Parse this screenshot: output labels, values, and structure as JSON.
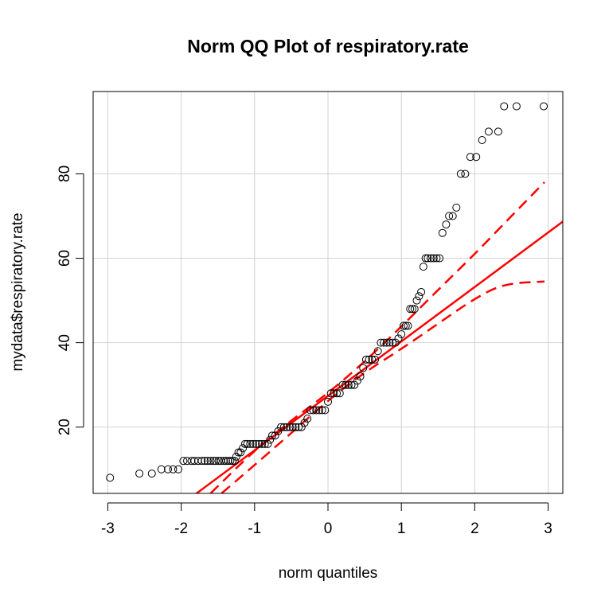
{
  "chart_data": {
    "type": "scatter",
    "title": "Norm QQ Plot of respiratory.rate",
    "xlabel": "norm quantiles",
    "ylabel": "mydata$respiratory.rate",
    "xlim": [
      -3.2,
      3.2
    ],
    "ylim": [
      4.3,
      99.5
    ],
    "xticks": [
      -3,
      -2,
      -1,
      0,
      1,
      2,
      3
    ],
    "yticks": [
      20,
      40,
      60,
      80
    ],
    "grid": true,
    "colors": {
      "points": "#000000",
      "fit_line": "#ff0000",
      "grid": "#d3d3d3",
      "box": "#000000"
    },
    "points": [
      [
        -2.97,
        8
      ],
      [
        -2.57,
        9
      ],
      [
        -2.4,
        9
      ],
      [
        -2.27,
        10
      ],
      [
        -2.18,
        10
      ],
      [
        -2.11,
        10
      ],
      [
        -2.04,
        10
      ],
      [
        -1.97,
        12
      ],
      [
        -1.92,
        12
      ],
      [
        -1.86,
        12
      ],
      [
        -1.82,
        12
      ],
      [
        -1.77,
        12
      ],
      [
        -1.72,
        12
      ],
      [
        -1.68,
        12
      ],
      [
        -1.64,
        12
      ],
      [
        -1.6,
        12
      ],
      [
        -1.56,
        12
      ],
      [
        -1.53,
        12
      ],
      [
        -1.49,
        12
      ],
      [
        -1.46,
        12
      ],
      [
        -1.42,
        12
      ],
      [
        -1.39,
        12
      ],
      [
        -1.36,
        12
      ],
      [
        -1.33,
        12
      ],
      [
        -1.3,
        12
      ],
      [
        -1.27,
        12
      ],
      [
        -1.25,
        13
      ],
      [
        -1.22,
        14
      ],
      [
        -1.19,
        14
      ],
      [
        -1.16,
        15
      ],
      [
        -1.13,
        16
      ],
      [
        -1.1,
        16
      ],
      [
        -1.06,
        16
      ],
      [
        -1.02,
        16
      ],
      [
        -0.98,
        16
      ],
      [
        -0.94,
        16
      ],
      [
        -0.9,
        16
      ],
      [
        -0.86,
        16
      ],
      [
        -0.82,
        16
      ],
      [
        -0.79,
        17
      ],
      [
        -0.76,
        18
      ],
      [
        -0.72,
        18
      ],
      [
        -0.68,
        19
      ],
      [
        -0.64,
        20
      ],
      [
        -0.6,
        20
      ],
      [
        -0.56,
        20
      ],
      [
        -0.52,
        20
      ],
      [
        -0.48,
        20
      ],
      [
        -0.44,
        20
      ],
      [
        -0.4,
        20
      ],
      [
        -0.36,
        20
      ],
      [
        -0.32,
        21
      ],
      [
        -0.28,
        22
      ],
      [
        -0.24,
        24
      ],
      [
        -0.2,
        24
      ],
      [
        -0.16,
        24
      ],
      [
        -0.12,
        24
      ],
      [
        -0.08,
        24
      ],
      [
        -0.04,
        24
      ],
      [
        0.0,
        26
      ],
      [
        0.04,
        28
      ],
      [
        0.08,
        28
      ],
      [
        0.12,
        28
      ],
      [
        0.16,
        28
      ],
      [
        0.2,
        30
      ],
      [
        0.24,
        30
      ],
      [
        0.28,
        30
      ],
      [
        0.32,
        30
      ],
      [
        0.36,
        30
      ],
      [
        0.4,
        31
      ],
      [
        0.44,
        32
      ],
      [
        0.48,
        34
      ],
      [
        0.52,
        36
      ],
      [
        0.56,
        36
      ],
      [
        0.6,
        36
      ],
      [
        0.64,
        36
      ],
      [
        0.68,
        38
      ],
      [
        0.72,
        40
      ],
      [
        0.76,
        40
      ],
      [
        0.8,
        40
      ],
      [
        0.84,
        40
      ],
      [
        0.88,
        40
      ],
      [
        0.92,
        40
      ],
      [
        0.96,
        41
      ],
      [
        1.0,
        42
      ],
      [
        1.03,
        44
      ],
      [
        1.06,
        44
      ],
      [
        1.09,
        44
      ],
      [
        1.12,
        48
      ],
      [
        1.15,
        48
      ],
      [
        1.18,
        48
      ],
      [
        1.21,
        50
      ],
      [
        1.24,
        51
      ],
      [
        1.27,
        52
      ],
      [
        1.3,
        58
      ],
      [
        1.33,
        60
      ],
      [
        1.36,
        60
      ],
      [
        1.4,
        60
      ],
      [
        1.44,
        60
      ],
      [
        1.48,
        60
      ],
      [
        1.52,
        60
      ],
      [
        1.56,
        66
      ],
      [
        1.61,
        68
      ],
      [
        1.65,
        70
      ],
      [
        1.7,
        70
      ],
      [
        1.75,
        72
      ],
      [
        1.81,
        80
      ],
      [
        1.87,
        80
      ],
      [
        1.94,
        84
      ],
      [
        2.02,
        84
      ],
      [
        2.1,
        88
      ],
      [
        2.19,
        90
      ],
      [
        2.32,
        90
      ],
      [
        2.4,
        96
      ],
      [
        2.57,
        96
      ],
      [
        2.94,
        96
      ]
    ],
    "fit_line": {
      "intercept": 27.4,
      "slope": 12.9
    },
    "envelope_upper": [
      [
        -1.6,
        4.3
      ],
      [
        -1.0,
        14.5
      ],
      [
        -0.5,
        21.6
      ],
      [
        0.0,
        28.0
      ],
      [
        0.5,
        35.5
      ],
      [
        1.0,
        43.8
      ],
      [
        1.5,
        52.5
      ],
      [
        2.0,
        61.0
      ],
      [
        2.5,
        70.0
      ],
      [
        2.95,
        78.0
      ]
    ],
    "envelope_lower": [
      [
        -1.45,
        4.3
      ],
      [
        -1.0,
        11.0
      ],
      [
        -0.5,
        18.6
      ],
      [
        0.0,
        26.3
      ],
      [
        0.5,
        33.0
      ],
      [
        1.0,
        38.5
      ],
      [
        1.5,
        44.5
      ],
      [
        2.0,
        50.5
      ],
      [
        2.4,
        54.0
      ],
      [
        2.95,
        54.5
      ]
    ]
  }
}
